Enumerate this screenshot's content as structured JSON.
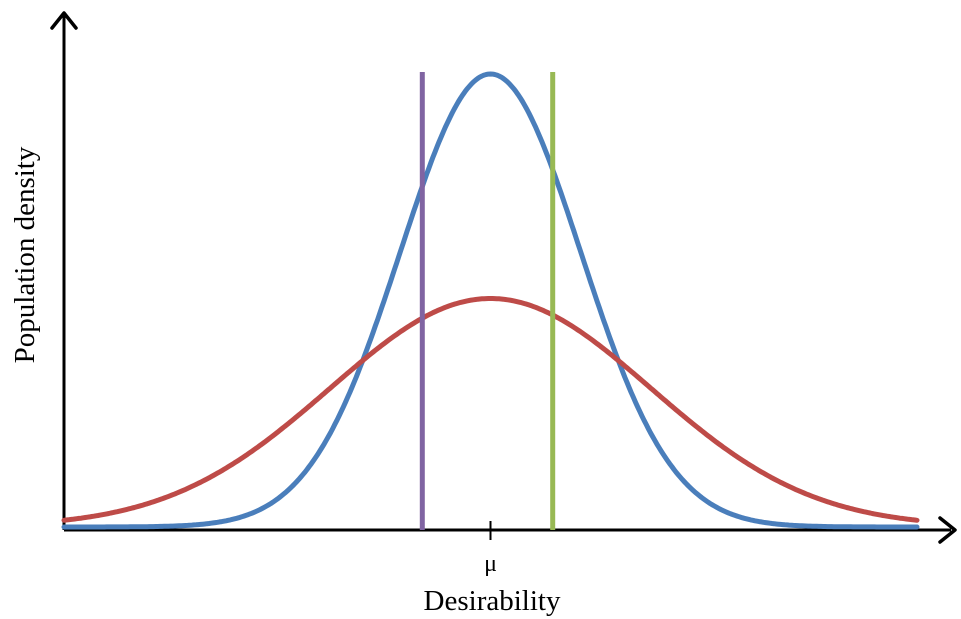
{
  "chart_data": {
    "type": "line",
    "title": "",
    "xlabel": "Desirability",
    "ylabel": "Population density",
    "xticks": [
      {
        "value": 0,
        "label": "μ"
      }
    ],
    "xlim": [
      -4.25,
      4.25
    ],
    "ylim": [
      0,
      0.5
    ],
    "grid": false,
    "legend": "none",
    "series": [
      {
        "kind": "normal",
        "mu": 0,
        "sigma": 0.9,
        "peak": 0.45,
        "color": "#4a7ebb"
      },
      {
        "kind": "normal",
        "mu": 0,
        "sigma": 1.6,
        "peak": 0.227,
        "color": "#be4b48"
      }
    ],
    "vlines": [
      {
        "x": -0.68,
        "color": "#8064a2"
      },
      {
        "x": 0.62,
        "color": "#98b954"
      }
    ]
  }
}
